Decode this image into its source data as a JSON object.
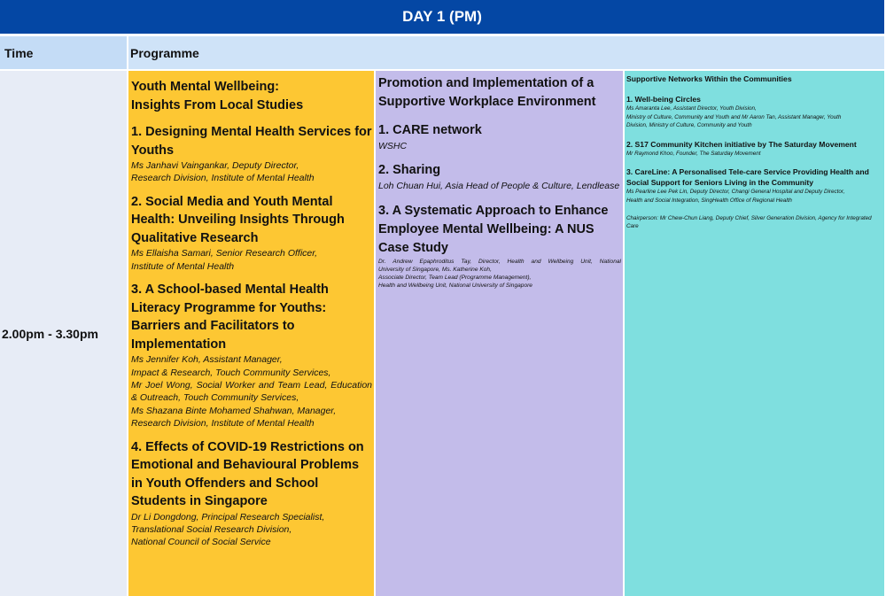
{
  "banner": {
    "title": "DAY 1 (PM)"
  },
  "header": {
    "time": "Time",
    "programme": "Programme"
  },
  "session": {
    "time": "2.00pm - 3.30pm"
  },
  "track_a": {
    "title_line1": "Youth Mental Wellbeing:",
    "title_line2": "Insights From Local Studies",
    "talks": [
      {
        "title": "1.  Designing Mental Health Services for Youths",
        "speakers": [
          "Ms Janhavi Vaingankar, Deputy Director,",
          "Research Division, Institute of Mental Health"
        ]
      },
      {
        "title": "2.  Social Media and Youth Mental Health: Unveiling Insights Through Qualitative Research",
        "speakers": [
          "Ms Ellaisha Samari, Senior Research Officer,",
          "Institute of Mental Health"
        ]
      },
      {
        "title": "3.  A School-based Mental Health Literacy Programme for Youths: Barriers and Facilitators to Implementation",
        "speakers": [
          "Ms Jennifer Koh, Assistant Manager,",
          "Impact & Research, Touch Community Services,",
          "Mr Joel Wong, Social Worker and Team Lead, Education & Outreach, Touch Community Services,",
          "Ms Shazana Binte Mohamed Shahwan, Manager,",
          "Research Division, Institute of Mental Health"
        ]
      },
      {
        "title": "4.  Effects of COVID-19 Restrictions on Emotional and Behavioural Problems in Youth Offenders and School Students in Singapore",
        "speakers": [
          "Dr Li Dongdong, Principal Research Specialist,",
          "Translational Social Research Division,",
          "National Council of Social Service"
        ]
      }
    ]
  },
  "track_b": {
    "title": "Promotion and Implementation of a Supportive Workplace Environment",
    "talks": [
      {
        "title": "1.  CARE network",
        "speaker": "WSHC"
      },
      {
        "title": "2.  Sharing",
        "speaker": "Loh Chuan Hui, Asia Head of People & Culture, Lendlease"
      },
      {
        "title": "3.  A Systematic Approach to Enhance Employee Mental Wellbeing: A NUS Case Study",
        "speakers": [
          "Dr. Andrew Epaphroditus Tay, Director, Health and Wellbeing Unit, National",
          "University of Singapore, Ms. Katherine Koh,",
          "Associate Director, Team Lead (Programme Management),",
          "Health and Wellbeing Unit, National University of Singapore"
        ]
      }
    ]
  },
  "track_c": {
    "title": "Supportive Networks Within the Communities",
    "talks": [
      {
        "title": "1.  Well-being Circles",
        "speakers": [
          "Ms Amaranta Lee, Assistant Director, Youth Division,",
          "Ministry of Culture, Community and Youth and Mr Aaron Tan, Assistant Manager, Youth",
          "Division, Ministry of Culture, Community and Youth"
        ]
      },
      {
        "title": "2.  S17 Community Kitchen initiative by The Saturday Movement",
        "speakers": [
          "Mr Raymond Khoo, Founder, The Saturday Movement"
        ]
      },
      {
        "title": "3.  CareLine: A Personalised Tele-care Service Providing Health and Social Support for Seniors Living in the Community",
        "speakers": [
          "Ms Pearline Lee Pek Lin, Deputy Director, Changi General Hospital and Deputy Director,",
          "Health and Social Integration, SingHealth Office of Regional Health"
        ]
      }
    ],
    "chairperson": "Chairperson: Mr Chew-Chun Liang, Deputy Chief, Silver Generation Division, Agency for Integrated Care"
  }
}
